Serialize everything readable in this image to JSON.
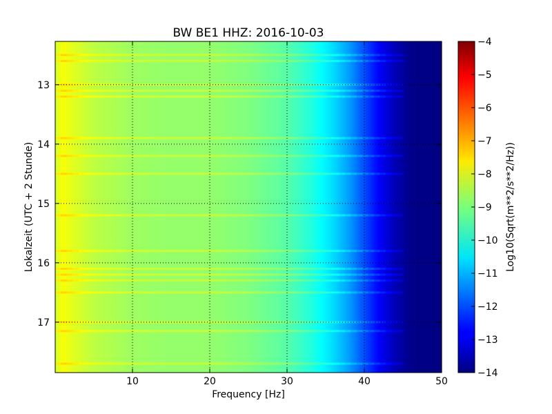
{
  "chart_data": {
    "type": "heatmap",
    "title": "BW BE1 HHZ: 2016-10-03",
    "xlabel": "Frequency [Hz]",
    "ylabel": "Lokalzeit (UTC + 2 Stunde)",
    "xlim": [
      0,
      50
    ],
    "ylim": [
      12.27,
      17.85
    ],
    "y_inverted": true,
    "x_ticks": [
      10,
      20,
      30,
      40,
      50
    ],
    "x_tick_labels": [
      "10",
      "20",
      "30",
      "40",
      "50"
    ],
    "y_ticks": [
      13,
      14,
      15,
      16,
      17
    ],
    "y_tick_labels": [
      "13",
      "14",
      "15",
      "16",
      "17"
    ],
    "grid": true,
    "grid_lines_x": [
      10,
      20,
      30,
      40
    ],
    "grid_lines_y": [
      13,
      14,
      15,
      16,
      17
    ],
    "colorbar": {
      "label": "Log10(Sqrt(m**2/s**2/Hz))",
      "min": -14,
      "max": -4,
      "ticks": [
        -4,
        -5,
        -6,
        -7,
        -8,
        -9,
        -10,
        -11,
        -12,
        -13,
        -14
      ],
      "tick_labels": [
        "−4",
        "−5",
        "−6",
        "−7",
        "−8",
        "−9",
        "−10",
        "−11",
        "−12",
        "−13",
        "−14"
      ],
      "colormap": "jet"
    },
    "spectral_profile": {
      "frequency_hz": [
        0,
        1,
        2,
        5,
        10,
        15,
        20,
        25,
        30,
        33,
        36,
        38,
        40,
        42,
        44,
        46,
        50
      ],
      "log10_amplitude": [
        -8.2,
        -7.8,
        -8.0,
        -8.4,
        -8.7,
        -8.8,
        -8.8,
        -9.0,
        -9.4,
        -9.9,
        -10.6,
        -11.2,
        -12.0,
        -12.8,
        -13.5,
        -13.9,
        -14.0
      ]
    },
    "bright_bands_hour": [
      12.5,
      12.6,
      13.0,
      13.1,
      13.2,
      13.9,
      14.2,
      14.5,
      15.2,
      15.8,
      16.1,
      16.2,
      16.3,
      16.5,
      17.0,
      17.15,
      17.7
    ]
  }
}
